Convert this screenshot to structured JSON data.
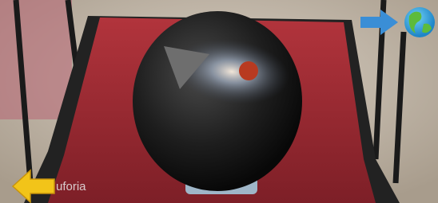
{
  "watermark": "uforia"
}
